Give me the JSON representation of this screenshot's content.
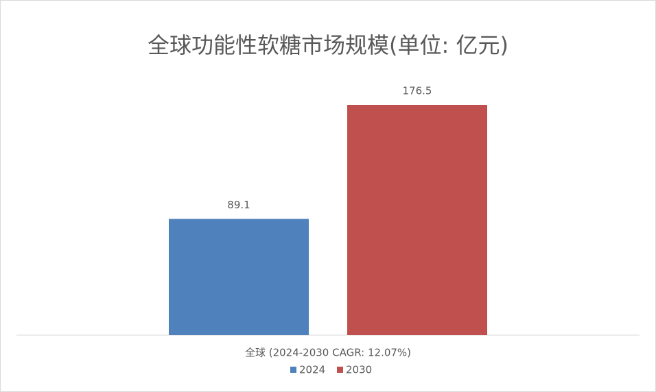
{
  "chart_data": {
    "type": "bar",
    "title": "全球功能性软糖市场规模(单位: 亿元)",
    "categories": [
      "全球 (2024-2030 CAGR: 12.07%)"
    ],
    "series": [
      {
        "name": "2024",
        "color": "#4f81bd",
        "values": [
          89.1
        ]
      },
      {
        "name": "2030",
        "color": "#c0504d",
        "values": [
          176.5
        ]
      }
    ]
  }
}
